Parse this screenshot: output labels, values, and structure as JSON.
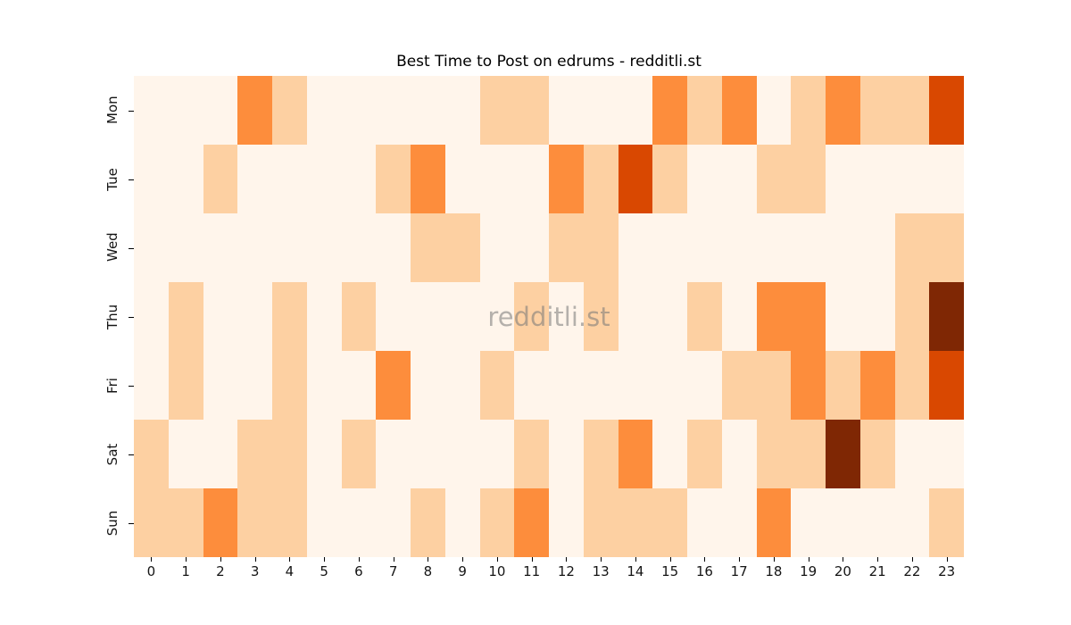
{
  "chart_data": {
    "type": "heatmap",
    "title": "Best Time to Post on edrums - redditli.st",
    "watermark": "redditli.st",
    "xlabel": "",
    "ylabel": "",
    "x_labels": [
      "0",
      "1",
      "2",
      "3",
      "4",
      "5",
      "6",
      "7",
      "8",
      "9",
      "10",
      "11",
      "12",
      "13",
      "14",
      "15",
      "16",
      "17",
      "18",
      "19",
      "20",
      "21",
      "22",
      "23"
    ],
    "y_labels": [
      "Mon",
      "Tue",
      "Wed",
      "Thu",
      "Fri",
      "Sat",
      "Sun"
    ],
    "matrix": [
      [
        0,
        0,
        0,
        2,
        1,
        0,
        0,
        0,
        0,
        0,
        1,
        1,
        0,
        0,
        0,
        2,
        1,
        2,
        0,
        1,
        2,
        1,
        1,
        3
      ],
      [
        0,
        0,
        1,
        0,
        0,
        0,
        0,
        1,
        2,
        0,
        0,
        0,
        2,
        1,
        3,
        1,
        0,
        0,
        1,
        1,
        0,
        0,
        0,
        0
      ],
      [
        0,
        0,
        0,
        0,
        0,
        0,
        0,
        0,
        1,
        1,
        0,
        0,
        1,
        1,
        0,
        0,
        0,
        0,
        0,
        0,
        0,
        0,
        1,
        1
      ],
      [
        0,
        1,
        0,
        0,
        1,
        0,
        1,
        0,
        0,
        0,
        0,
        1,
        0,
        1,
        0,
        0,
        1,
        0,
        2,
        2,
        0,
        0,
        1,
        4
      ],
      [
        0,
        1,
        0,
        0,
        1,
        0,
        0,
        2,
        0,
        0,
        1,
        0,
        0,
        0,
        0,
        0,
        0,
        1,
        1,
        2,
        1,
        2,
        1,
        3
      ],
      [
        1,
        0,
        0,
        1,
        1,
        0,
        1,
        0,
        0,
        0,
        0,
        1,
        0,
        1,
        2,
        0,
        1,
        0,
        1,
        1,
        4,
        1,
        0,
        0
      ],
      [
        1,
        1,
        2,
        1,
        1,
        0,
        0,
        0,
        1,
        0,
        1,
        2,
        0,
        1,
        1,
        1,
        0,
        0,
        2,
        0,
        0,
        0,
        0,
        1
      ]
    ],
    "value_range": [
      0,
      4
    ],
    "colormap": "Oranges",
    "palette": [
      "#fff5eb",
      "#fdd0a2",
      "#fd8d3c",
      "#d94801",
      "#7f2704"
    ],
    "grid": false,
    "legend": "none",
    "colors": {
      "background": "#ffffff",
      "title_text": "#000000",
      "tick_text": "#151515",
      "watermark_text": "#767676"
    }
  }
}
